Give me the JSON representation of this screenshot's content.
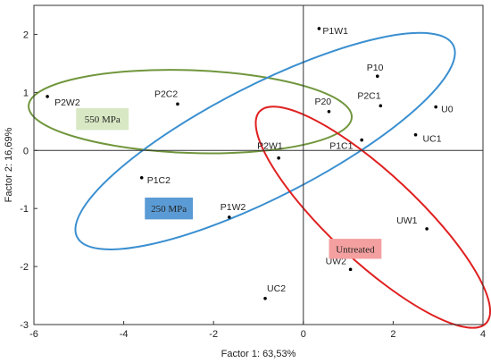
{
  "chart_data": {
    "type": "scatter",
    "xlabel": "Factor 1: 63,53%",
    "ylabel": "Factor 2: 16,69%",
    "xlim": [
      -6,
      4
    ],
    "ylim": [
      -3,
      2.5
    ],
    "xticks": [
      -6,
      -4,
      -2,
      0,
      2,
      4
    ],
    "yticks": [
      -3,
      -2,
      -1,
      0,
      1,
      2
    ],
    "xtick_labels": [
      "-6",
      "-4",
      "-2",
      "0",
      "2",
      "4"
    ],
    "ytick_labels": [
      "-3",
      "-2",
      "-1",
      "0",
      "1",
      "2"
    ],
    "grid": false,
    "points": [
      {
        "label": "P1W1",
        "x": 0.35,
        "y": 2.1
      },
      {
        "label": "P10",
        "x": 1.65,
        "y": 1.28
      },
      {
        "label": "P2C1",
        "x": 1.72,
        "y": 0.77
      },
      {
        "label": "P20",
        "x": 0.57,
        "y": 0.67
      },
      {
        "label": "U0",
        "x": 2.95,
        "y": 0.75
      },
      {
        "label": "UC1",
        "x": 2.5,
        "y": 0.27
      },
      {
        "label": "P1C1",
        "x": 1.3,
        "y": 0.18
      },
      {
        "label": "P2W2",
        "x": -5.7,
        "y": 0.93
      },
      {
        "label": "P2C2",
        "x": -2.8,
        "y": 0.8
      },
      {
        "label": "P2W1",
        "x": -0.55,
        "y": -0.13
      },
      {
        "label": "P1C2",
        "x": -3.6,
        "y": -0.47
      },
      {
        "label": "P1W2",
        "x": -1.65,
        "y": -1.15
      },
      {
        "label": "UW1",
        "x": 2.75,
        "y": -1.35
      },
      {
        "label": "UW2",
        "x": 1.05,
        "y": -2.05
      },
      {
        "label": "UC2",
        "x": -0.85,
        "y": -2.55
      }
    ],
    "groups": [
      {
        "name": "550 MPa",
        "color": "#70963c",
        "fill": "#d8e8c4"
      },
      {
        "name": "250 MPa",
        "color": "#3a8fd0",
        "fill": "#5b9bd5"
      },
      {
        "name": "Untreated",
        "color": "#e02020",
        "fill": "#f4a0a0"
      }
    ]
  }
}
